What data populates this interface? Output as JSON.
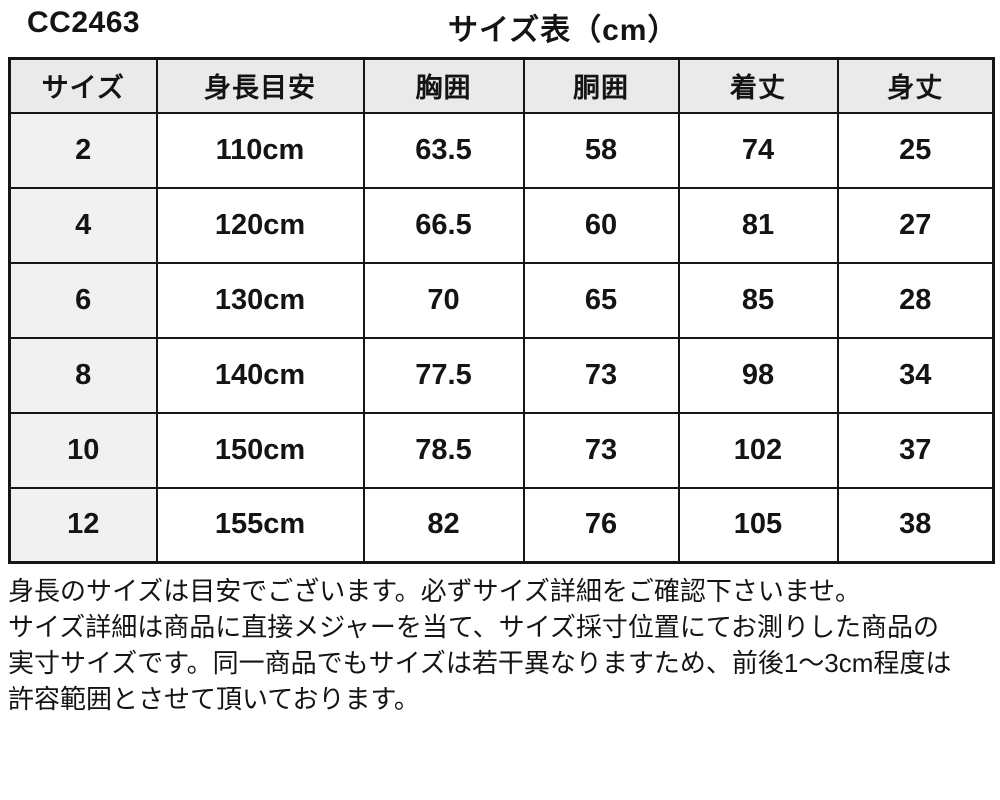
{
  "header": {
    "product_code": "CC2463",
    "title": "サイズ表（cm）"
  },
  "table": {
    "headers": [
      "サイズ",
      "身長目安",
      "胸囲",
      "胴囲",
      "着丈",
      "身丈"
    ],
    "rows": [
      [
        "2",
        "110cm",
        "63.5",
        "58",
        "74",
        "25"
      ],
      [
        "4",
        "120cm",
        "66.5",
        "60",
        "81",
        "27"
      ],
      [
        "6",
        "130cm",
        "70",
        "65",
        "85",
        "28"
      ],
      [
        "8",
        "140cm",
        "77.5",
        "73",
        "98",
        "34"
      ],
      [
        "10",
        "150cm",
        "78.5",
        "73",
        "102",
        "37"
      ],
      [
        "12",
        "155cm",
        "82",
        "76",
        "105",
        "38"
      ]
    ]
  },
  "notes": {
    "lines": [
      "身長のサイズは目安でございます。必ずサイズ詳細をご確認下さいませ。",
      "サイズ詳細は商品に直接メジャーを当て、サイズ採寸位置にてお測りした商品の",
      "実寸サイズです。同一商品でもサイズは若干異なりますため、前後1～3cm程度は",
      "許容範囲とさせて頂いております。"
    ]
  },
  "colors": {
    "border": "#161616",
    "header_bg": "#eaeaea",
    "first_col_bg": "#f1f1f1",
    "text": "#141414"
  }
}
